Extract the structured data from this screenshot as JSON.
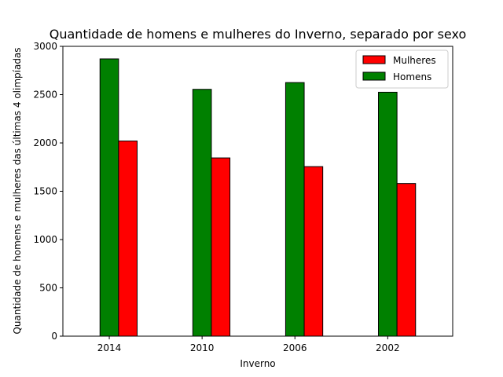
{
  "chart_data": {
    "type": "bar",
    "title": "Quantidade de homens e mulheres do Inverno, separado por sexo",
    "xlabel": "Inverno",
    "ylabel": "Quantidade de homens e mulheres das últimas 4 olimpíadas",
    "categories": [
      "2014",
      "2010",
      "2006",
      "2002"
    ],
    "series": [
      {
        "name": "Homens",
        "color": "#008000",
        "values": [
          2870,
          2555,
          2625,
          2525
        ]
      },
      {
        "name": "Mulheres",
        "color": "#ff0000",
        "values": [
          2020,
          1845,
          1755,
          1580
        ]
      }
    ],
    "ylim": [
      0,
      3000
    ],
    "yticks": [
      0,
      500,
      1000,
      1500,
      2000,
      2500,
      3000
    ],
    "grid": false,
    "legend": {
      "position": "top-right",
      "entries": [
        {
          "label": "Mulheres",
          "color": "#ff0000"
        },
        {
          "label": "Homens",
          "color": "#008000"
        }
      ]
    }
  }
}
